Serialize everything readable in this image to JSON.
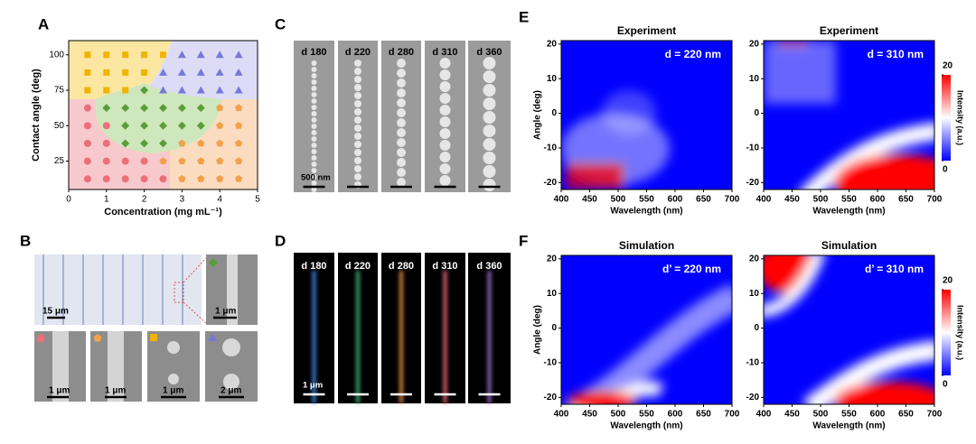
{
  "panel_labels": [
    "A",
    "B",
    "C",
    "D",
    "E",
    "F"
  ],
  "chart_data": [
    {
      "type": "scatter",
      "xlabel": "Concentration (mg mL⁻¹)",
      "ylabel": "Contact angle (deg)",
      "xlim": [
        0,
        5
      ],
      "ylim": [
        5,
        110
      ],
      "xticks": [
        0,
        1,
        2,
        3,
        4,
        5
      ],
      "yticks": [
        25,
        50,
        75,
        100
      ],
      "series": [
        {
          "color": "#f0b400",
          "marker": "square",
          "x": [
            0.5,
            1,
            1.5,
            2,
            2.5,
            0.5,
            1,
            1.5,
            2,
            0.5,
            1,
            1.5
          ],
          "y": [
            100,
            100,
            100,
            100,
            100,
            87.5,
            87.5,
            87.5,
            87.5,
            75,
            75,
            75
          ]
        },
        {
          "color": "#7878d8",
          "marker": "triangle",
          "x": [
            3,
            3.5,
            4,
            4.5,
            2.5,
            3,
            3.5,
            4,
            4.5,
            2.5,
            3,
            3.5,
            4,
            4.5
          ],
          "y": [
            100,
            100,
            100,
            100,
            87.5,
            87.5,
            87.5,
            87.5,
            87.5,
            75,
            75,
            75,
            75,
            75
          ]
        },
        {
          "color": "#5a9e3a",
          "marker": "diamond",
          "x": [
            2,
            1,
            1.5,
            2,
            2.5,
            3,
            3.5,
            1.5,
            2,
            2.5,
            3,
            3.5,
            1.5,
            2,
            2.5
          ],
          "y": [
            75,
            62.5,
            62.5,
            62.5,
            62.5,
            62.5,
            62.5,
            50,
            50,
            50,
            50,
            50,
            37.5,
            37.5,
            37.5
          ]
        },
        {
          "color": "#ea6f7a",
          "marker": "circle",
          "x": [
            0.5,
            0.5,
            1,
            0.5,
            1,
            0.5,
            1,
            1.5,
            2,
            0.5,
            1,
            1.5,
            2,
            2.5
          ],
          "y": [
            62.5,
            50,
            50,
            37.5,
            37.5,
            25,
            25,
            25,
            25,
            12.5,
            12.5,
            12.5,
            12.5,
            12.5
          ]
        },
        {
          "color": "#f3a04a",
          "marker": "pentagon",
          "x": [
            4,
            4.5,
            4,
            4.5,
            3,
            3.5,
            4,
            4.5,
            2.5,
            3,
            3.5,
            4,
            4.5,
            3,
            3.5,
            4,
            4.5
          ],
          "y": [
            62.5,
            62.5,
            50,
            50,
            37.5,
            37.5,
            37.5,
            37.5,
            25,
            25,
            25,
            25,
            25,
            12.5,
            12.5,
            12.5,
            12.5
          ]
        }
      ]
    },
    {
      "type": "heatmap",
      "title": "Experiment",
      "annotation": "d = 220 nm",
      "xlabel": "Wavelength (nm)",
      "ylabel": "Angle (deg)",
      "xlim": [
        400,
        700
      ],
      "ylim": [
        -22,
        21
      ],
      "xticks": [
        400,
        450,
        500,
        550,
        600,
        650,
        700
      ],
      "yticks": [
        -20,
        -10,
        0,
        10,
        20
      ],
      "colormap": [
        "#0000ff",
        "#ffffff",
        "#ff0000"
      ]
    },
    {
      "type": "heatmap",
      "title": "Experiment",
      "annotation": "d  = 310 nm",
      "xlabel": "Wavelength (nm)",
      "xlim": [
        400,
        700
      ],
      "ylim": [
        -22,
        21
      ],
      "xticks": [
        400,
        450,
        500,
        550,
        600,
        650,
        700
      ],
      "yticks": [
        -20,
        -10,
        0,
        10,
        20
      ],
      "colormap": [
        "#0000ff",
        "#ffffff",
        "#ff0000"
      ],
      "colorbar": {
        "label": "Intensity (a.u.)",
        "lim": [
          0,
          20
        ],
        "ticks": [
          0,
          20
        ]
      }
    },
    {
      "type": "heatmap",
      "title": "Simulation",
      "annotation": "d’ = 220 nm",
      "xlabel": "Wavelength (nm)",
      "ylabel": "Angle (deg)",
      "xlim": [
        400,
        700
      ],
      "ylim": [
        -22,
        21
      ],
      "xticks": [
        400,
        450,
        500,
        550,
        600,
        650,
        700
      ],
      "yticks": [
        -20,
        -10,
        0,
        10,
        20
      ],
      "colormap": [
        "#0000ff",
        "#ffffff",
        "#ff0000"
      ]
    },
    {
      "type": "heatmap",
      "title": "Simulation",
      "annotation": "d’ = 310 nm",
      "xlabel": "Wavelength (nm)",
      "xlim": [
        400,
        700
      ],
      "ylim": [
        -22,
        21
      ],
      "xticks": [
        400,
        450,
        500,
        550,
        600,
        650,
        700
      ],
      "yticks": [
        -20,
        -10,
        0,
        10,
        20
      ],
      "colormap": [
        "#0000ff",
        "#ffffff",
        "#ff0000"
      ],
      "colorbar": {
        "label": "Intensity (a.u.)",
        "lim": [
          0,
          20
        ],
        "ticks": [
          0,
          20
        ]
      }
    }
  ],
  "panel_b": {
    "scale_bars": [
      "15 μm",
      "1 μm",
      "1 μm",
      "1 μm",
      "1 μm",
      "2 μm"
    ]
  },
  "panel_c": {
    "labels": [
      "d 180",
      "d 220",
      "d 280",
      "d 310",
      "d 360"
    ],
    "scale_bar": "500 nm"
  },
  "panel_d": {
    "labels": [
      "d 180",
      "d 220",
      "d 280",
      "d 310",
      "d 360"
    ],
    "scale_bar": "1 μm"
  }
}
